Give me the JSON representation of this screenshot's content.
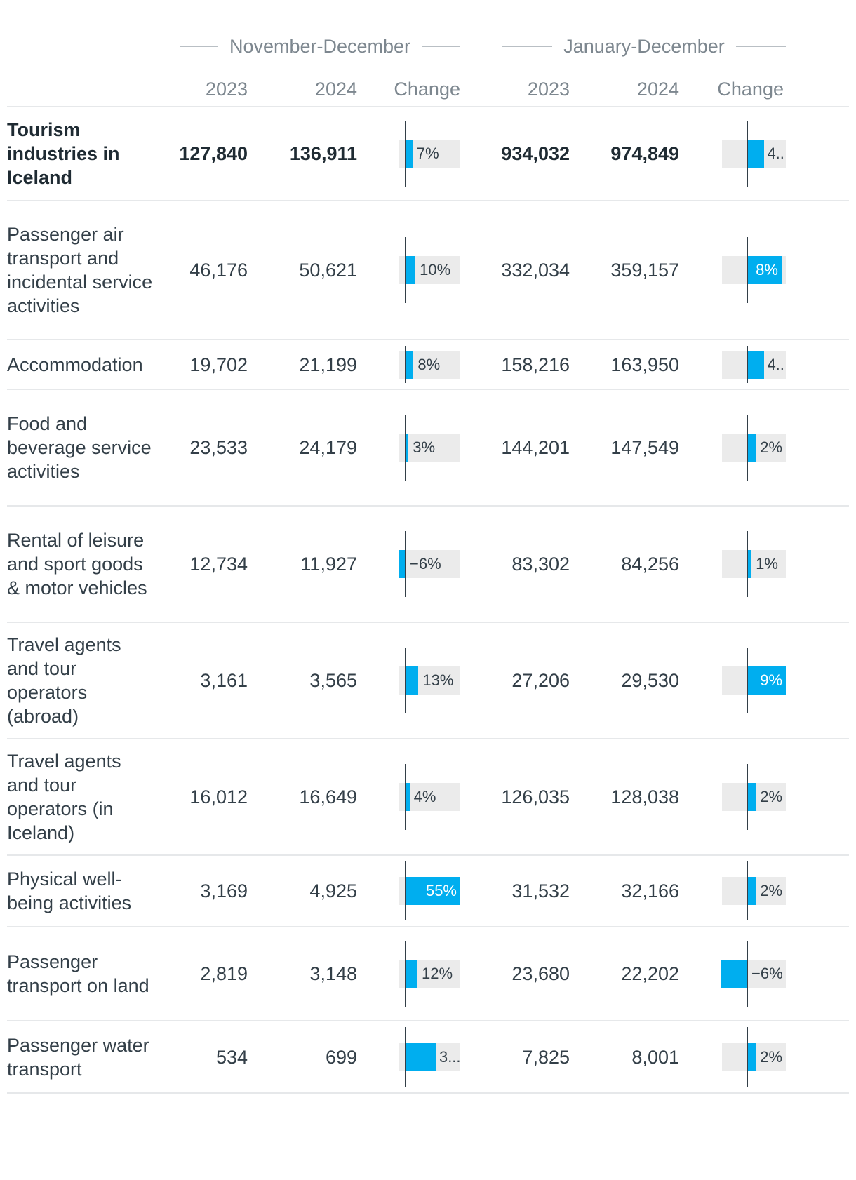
{
  "header": {
    "group1": "November-December",
    "group2": "January-December",
    "columns": [
      "2023",
      "2024",
      "Change",
      "2023",
      "2024",
      "Change"
    ]
  },
  "chart_data": {
    "type": "table",
    "columns": [
      "",
      "November-December 2023",
      "November-December 2024",
      "November-December Change",
      "January-December 2023",
      "January-December 2024",
      "January-December Change"
    ],
    "rows": [
      {
        "label": "Tourism industries in Iceland",
        "nd2023": "127,840",
        "nd2024": "136,911",
        "ndChange": 7,
        "ndLabel": "7%",
        "jd2023": "934,032",
        "jd2024": "974,849",
        "jdChange": 4,
        "jdLabel": "4..",
        "bold": true
      },
      {
        "label": "Passenger air transport and incidental service activities",
        "nd2023": "46,176",
        "nd2024": "50,621",
        "ndChange": 10,
        "ndLabel": "10%",
        "jd2023": "332,034",
        "jd2024": "359,157",
        "jdChange": 8,
        "jdLabel": "8%"
      },
      {
        "label": "Accommodation",
        "nd2023": "19,702",
        "nd2024": "21,199",
        "ndChange": 8,
        "ndLabel": "8%",
        "jd2023": "158,216",
        "jd2024": "163,950",
        "jdChange": 4,
        "jdLabel": "4.."
      },
      {
        "label": "Food and beverage service activities",
        "nd2023": "23,533",
        "nd2024": "24,179",
        "ndChange": 3,
        "ndLabel": "3%",
        "jd2023": "144,201",
        "jd2024": "147,549",
        "jdChange": 2,
        "jdLabel": "2%"
      },
      {
        "label": "Rental of leisure and sport goods & motor vehicles",
        "nd2023": "12,734",
        "nd2024": "11,927",
        "ndChange": -6,
        "ndLabel": "−6%",
        "jd2023": "83,302",
        "jd2024": "84,256",
        "jdChange": 1,
        "jdLabel": "1%"
      },
      {
        "label": "Travel agents and tour operators (abroad)",
        "nd2023": "3,161",
        "nd2024": "3,565",
        "ndChange": 13,
        "ndLabel": "13%",
        "jd2023": "27,206",
        "jd2024": "29,530",
        "jdChange": 9,
        "jdLabel": "9%"
      },
      {
        "label": "Travel agents and tour operators (in Iceland)",
        "nd2023": "16,012",
        "nd2024": "16,649",
        "ndChange": 4,
        "ndLabel": "4%",
        "jd2023": "126,035",
        "jd2024": "128,038",
        "jdChange": 2,
        "jdLabel": "2%"
      },
      {
        "label": "Physical well-being activities",
        "nd2023": "3,169",
        "nd2024": "4,925",
        "ndChange": 55,
        "ndLabel": "55%",
        "jd2023": "31,532",
        "jd2024": "32,166",
        "jdChange": 2,
        "jdLabel": "2%"
      },
      {
        "label": "Passenger transport on land",
        "nd2023": "2,819",
        "nd2024": "3,148",
        "ndChange": 12,
        "ndLabel": "12%",
        "jd2023": "23,680",
        "jd2024": "22,202",
        "jdChange": -6,
        "jdLabel": "−6%"
      },
      {
        "label": "Passenger water transport",
        "nd2023": "534",
        "nd2024": "699",
        "ndChange": 31,
        "ndLabel": "3...",
        "jd2023": "7,825",
        "jd2024": "8,001",
        "jdChange": 2,
        "jdLabel": "2%"
      }
    ]
  }
}
